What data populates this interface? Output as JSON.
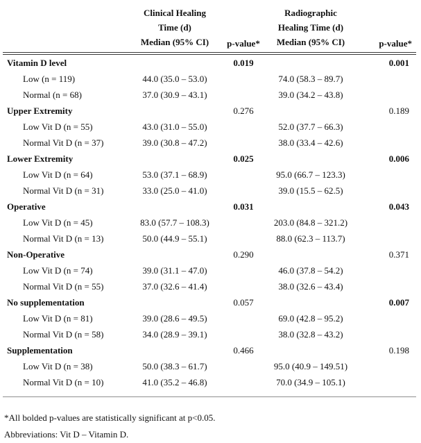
{
  "table": {
    "columns": {
      "clinical_header_lines": [
        "Clinical Healing",
        "Time (d)",
        "Median (95% CI)"
      ],
      "clinical_p_header": "p-value*",
      "radiographic_header_lines": [
        "Radiographic",
        "Healing Time (d)",
        "Median (95% CI)"
      ],
      "radiographic_p_header": "p-value*"
    },
    "groups": [
      {
        "label": "Vitamin D level",
        "clinical_p": "0.019",
        "clinical_p_bold": true,
        "radiographic_p": "0.001",
        "radiographic_p_bold": true,
        "rows": [
          {
            "label": "Low (n = 119)",
            "clinical": "44.0 (35.0 – 53.0)",
            "radiographic": "74.0 (58.3 – 89.7)"
          },
          {
            "label": "Normal (n = 68)",
            "clinical": "37.0 (30.9 – 43.1)",
            "radiographic": "39.0 (34.2 – 43.8)"
          }
        ]
      },
      {
        "label": "Upper Extremity",
        "clinical_p": "0.276",
        "clinical_p_bold": false,
        "radiographic_p": "0.189",
        "radiographic_p_bold": false,
        "rows": [
          {
            "label": "Low Vit D (n = 55)",
            "clinical": "43.0 (31.0 – 55.0)",
            "radiographic": "52.0 (37.7 – 66.3)"
          },
          {
            "label": "Normal Vit D (n = 37)",
            "clinical": "39.0 (30.8 – 47.2)",
            "radiographic": "38.0 (33.4 – 42.6)"
          }
        ]
      },
      {
        "label": "Lower Extremity",
        "clinical_p": "0.025",
        "clinical_p_bold": true,
        "radiographic_p": "0.006",
        "radiographic_p_bold": true,
        "rows": [
          {
            "label": "Low Vit D (n = 64)",
            "clinical": "53.0 (37.1 – 68.9)",
            "radiographic": "95.0 (66.7 – 123.3)"
          },
          {
            "label": "Normal Vit D (n = 31)",
            "clinical": "33.0 (25.0 – 41.0)",
            "radiographic": "39.0 (15.5 – 62.5)"
          }
        ]
      },
      {
        "label": "Operative",
        "clinical_p": "0.031",
        "clinical_p_bold": true,
        "radiographic_p": "0.043",
        "radiographic_p_bold": true,
        "rows": [
          {
            "label": "Low Vit D (n = 45)",
            "clinical": "83.0 (57.7 – 108.3)",
            "radiographic": "203.0 (84.8 – 321.2)"
          },
          {
            "label": "Normal Vit D (n = 13)",
            "clinical": "50.0 (44.9 – 55.1)",
            "radiographic": "88.0 (62.3 – 113.7)"
          }
        ]
      },
      {
        "label": "Non-Operative",
        "clinical_p": "0.290",
        "clinical_p_bold": false,
        "radiographic_p": "0.371",
        "radiographic_p_bold": false,
        "rows": [
          {
            "label": "Low Vit D (n = 74)",
            "clinical": "39.0 (31.1 – 47.0)",
            "radiographic": "46.0 (37.8 – 54.2)"
          },
          {
            "label": "Normal Vit D (n = 55)",
            "clinical": "37.0 (32.6 – 41.4)",
            "radiographic": "38.0 (32.6 – 43.4)"
          }
        ]
      },
      {
        "label": "No supplementation",
        "clinical_p": "0.057",
        "clinical_p_bold": false,
        "radiographic_p": "0.007",
        "radiographic_p_bold": true,
        "rows": [
          {
            "label": "Low Vit D (n = 81)",
            "clinical": "39.0 (28.6 – 49.5)",
            "radiographic": "69.0 (42.8 – 95.2)"
          },
          {
            "label": "Normal Vit D (n = 58)",
            "clinical": "34.0 (28.9 – 39.1)",
            "radiographic": "38.0 (32.8 – 43.2)"
          }
        ]
      },
      {
        "label": "Supplementation",
        "clinical_p": "0.466",
        "clinical_p_bold": false,
        "radiographic_p": "0.198",
        "radiographic_p_bold": false,
        "rows": [
          {
            "label": "Low Vit D (n = 38)",
            "clinical": "50.0 (38.3 – 61.7)",
            "radiographic": "95.0 (40.9 – 149.51)"
          },
          {
            "label": "Normal Vit D (n = 10)",
            "clinical": "41.0 (35.2 – 46.8)",
            "radiographic": "70.0 (34.9 – 105.1)"
          }
        ]
      }
    ],
    "footnotes": [
      "*All bolded p-values are statistically significant at p<0.05.",
      "Abbreviations: Vit D – Vitamin D."
    ]
  }
}
